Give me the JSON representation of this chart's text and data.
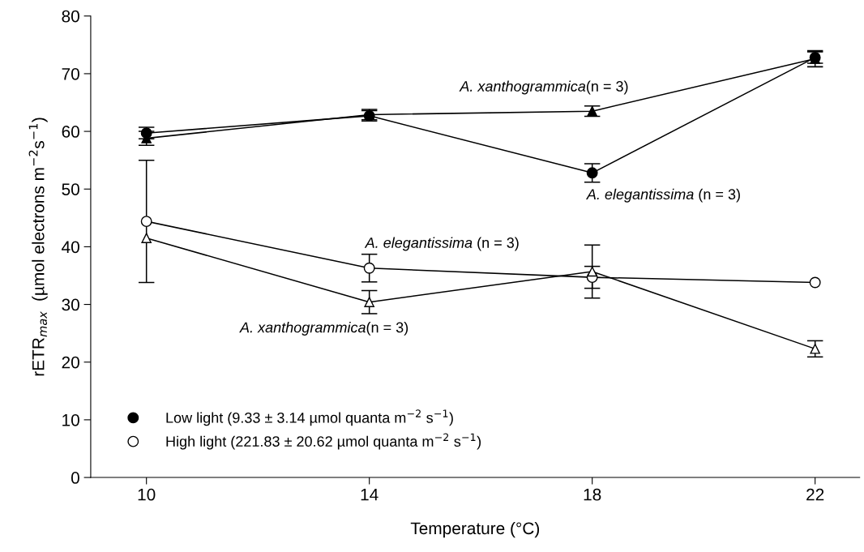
{
  "chart_data": {
    "type": "line",
    "xlabel": "Temperature (°C)",
    "ylabel": "rETR$_{max}$  (µmol electrons m$^{−2}$s$^{−1}$)",
    "x": [
      10,
      14,
      18,
      22
    ],
    "xlim": [
      9,
      22.8
    ],
    "xticks": [
      10,
      14,
      18,
      22
    ],
    "ylim": [
      0,
      80
    ],
    "yticks": [
      0,
      10,
      20,
      30,
      40,
      50,
      60,
      70,
      80
    ],
    "grid": false,
    "legend": "bottom left",
    "series": [
      {
        "name": "Low light (9.33 ± 3.14 µmol quanta m$^{−2}$ s$^{−1}$)",
        "color": "#000000",
        "marker": "circle",
        "values": [
          59.7,
          62.7,
          52.8,
          72.8
        ],
        "errors": [
          1.0,
          0.9,
          1.6,
          1.0
        ]
      },
      {
        "color": "#000000",
        "marker": "triangle",
        "values": [
          58.8,
          62.9,
          63.5,
          72.6
        ],
        "errors": [
          1.2,
          0.9,
          0.9,
          1.4
        ]
      },
      {
        "name": "High light (221.83 ± 20.62 µmol quanta m$^{−2}$ s$^{−1}$)",
        "color": "#ffffff",
        "marker": "circle",
        "values": [
          44.4,
          36.3,
          34.7,
          33.8
        ],
        "errors": [
          10.6,
          2.4,
          1.9,
          null
        ]
      },
      {
        "color": "#ffffff",
        "marker": "triangle",
        "values": [
          41.5,
          30.4,
          35.7,
          22.3
        ],
        "errors": [
          null,
          2.0,
          4.6,
          1.4
        ]
      }
    ],
    "annotations": [
      "A. xanthogrammica(n = 3)",
      "A. elegantissima (n = 3)",
      "A. elegantissima (n = 3)",
      "A. xanthogrammica(n = 3)"
    ]
  }
}
